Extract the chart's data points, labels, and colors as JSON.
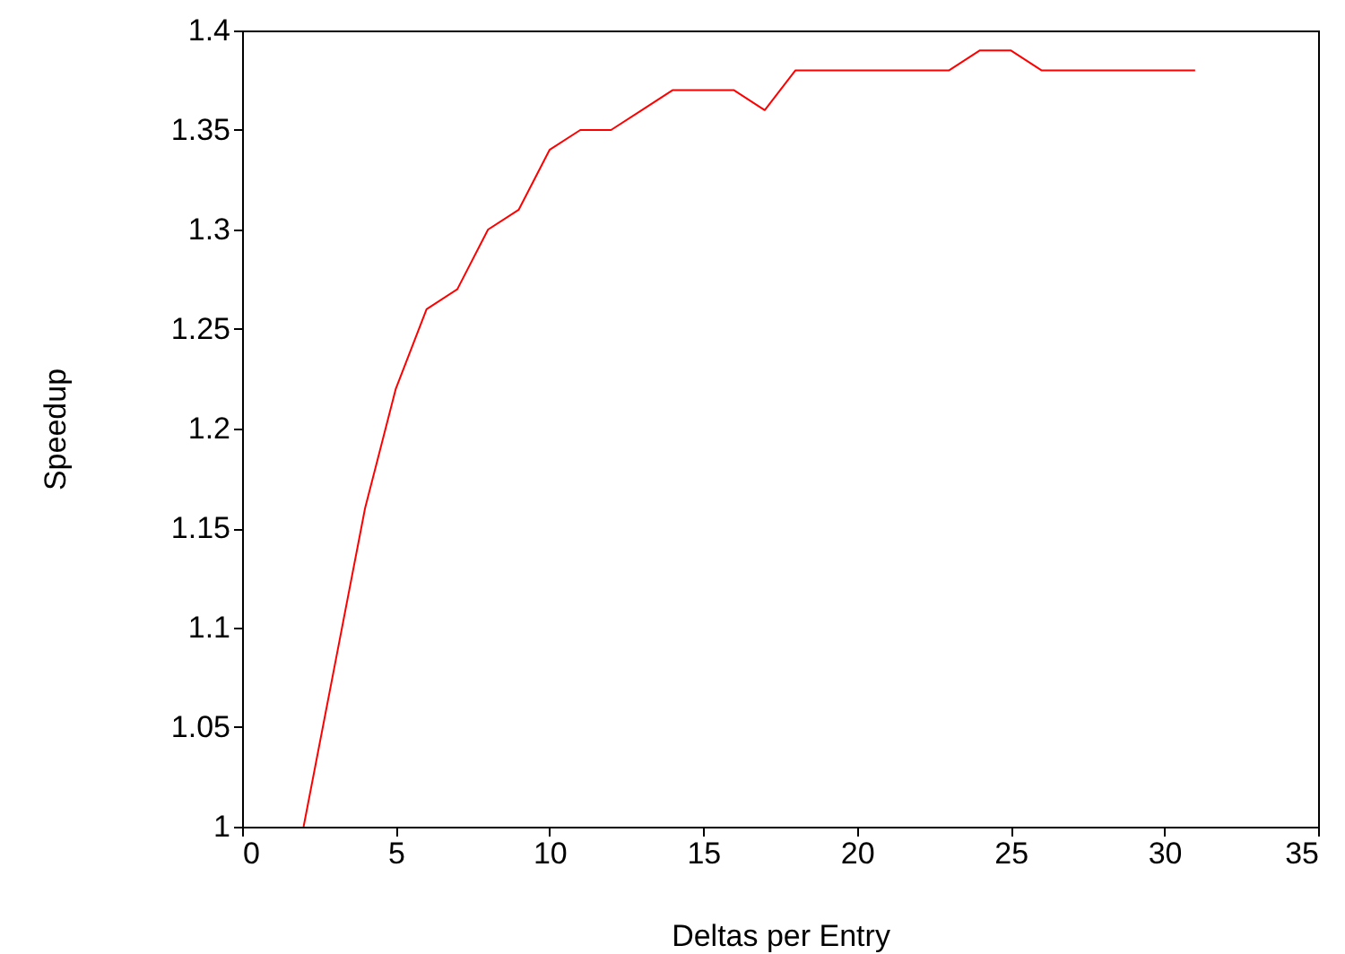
{
  "chart_data": {
    "type": "line",
    "xlabel": "Deltas per Entry",
    "ylabel": "Speedup",
    "x": [
      2,
      3,
      4,
      5,
      6,
      7,
      8,
      9,
      10,
      11,
      12,
      13,
      14,
      15,
      16,
      17,
      18,
      19,
      20,
      21,
      22,
      23,
      24,
      25,
      26,
      27,
      28,
      29,
      30,
      31
    ],
    "series": [
      {
        "color": "#ff0000",
        "values": [
          1.0,
          1.08,
          1.16,
          1.22,
          1.26,
          1.27,
          1.3,
          1.31,
          1.34,
          1.35,
          1.35,
          1.36,
          1.37,
          1.37,
          1.37,
          1.36,
          1.38,
          1.38,
          1.38,
          1.38,
          1.38,
          1.38,
          1.39,
          1.39,
          1.38,
          1.38,
          1.38,
          1.38,
          1.38,
          1.38
        ]
      }
    ],
    "xlim": [
      0,
      35
    ],
    "xticks": [
      0,
      5,
      10,
      15,
      20,
      25,
      30,
      35
    ],
    "ylim": [
      1,
      1.4
    ],
    "yticks": [
      1,
      1.05,
      1.1,
      1.15,
      1.2,
      1.25,
      1.3,
      1.35,
      1.4
    ],
    "grid": false,
    "marker": "none",
    "line_style": "solid"
  }
}
